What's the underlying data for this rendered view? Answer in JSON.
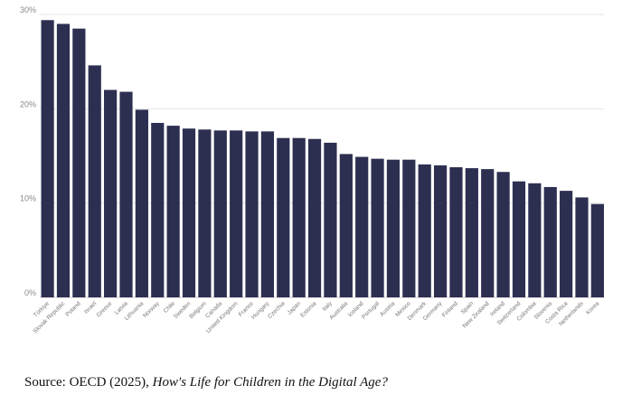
{
  "chart_data": {
    "type": "bar",
    "categories": [
      "Türkiye",
      "Slovak Republic",
      "Poland",
      "Israel",
      "Greece",
      "Latvia",
      "Lithuania",
      "Norway",
      "Chile",
      "Sweden",
      "Belgium",
      "Canada",
      "United Kingdom",
      "France",
      "Hungary",
      "Czechia",
      "Japan",
      "Estonia",
      "Italy",
      "Australia",
      "Iceland",
      "Portugal",
      "Austria",
      "Mexico",
      "Denmark",
      "Germany",
      "Finland",
      "Spain",
      "New Zealand",
      "Ireland",
      "Switzerland",
      "Colombia",
      "Slovenia",
      "Costa Rica",
      "Netherlands",
      "Korea"
    ],
    "values": [
      29.4,
      29.0,
      28.5,
      24.6,
      22.0,
      21.8,
      19.9,
      18.5,
      18.2,
      17.9,
      17.8,
      17.7,
      17.7,
      17.6,
      17.6,
      16.9,
      16.9,
      16.8,
      16.4,
      15.2,
      14.9,
      14.7,
      14.6,
      14.6,
      14.1,
      14.0,
      13.8,
      13.7,
      13.6,
      13.3,
      12.3,
      12.1,
      11.7,
      11.3,
      10.6,
      9.9
    ],
    "yticks": [
      "0%",
      "10%",
      "20%",
      "30%"
    ],
    "ylim": [
      0,
      30
    ],
    "bar_color": "#2d2f51",
    "grid": true
  },
  "source": {
    "prefix": "Source: OECD (2025), ",
    "title": "How's Life for Children in the Digital Age?"
  }
}
